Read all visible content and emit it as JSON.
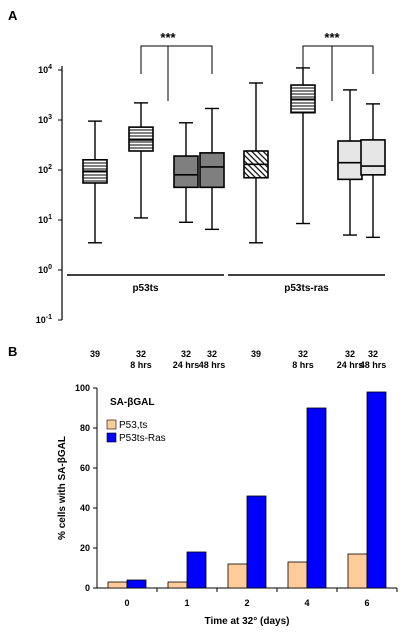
{
  "chart_data": [
    {
      "panel": "A",
      "type": "box",
      "scale": "log",
      "ylim_exp": [
        -1,
        4
      ],
      "y_ticks": [
        {
          "base": "10",
          "exp": "4",
          "value_exp": 4
        },
        {
          "base": "10",
          "exp": "3",
          "value_exp": 3
        },
        {
          "base": "10",
          "exp": "2",
          "value_exp": 2
        },
        {
          "base": "10",
          "exp": "1",
          "value_exp": 1
        },
        {
          "base": "10",
          "exp": "0",
          "value_exp": 0
        },
        {
          "base": "10",
          "exp": "-1",
          "value_exp": -1
        }
      ],
      "boxes": [
        {
          "cat1": "39",
          "cat2": "",
          "min": 3.5,
          "q1": 55,
          "median": 95,
          "q3": 160,
          "max": 950,
          "fill": "hatch-h"
        },
        {
          "cat1": "32",
          "cat2": "8 hrs",
          "min": 11,
          "q1": 240,
          "median": 400,
          "q3": 720,
          "max": 2200,
          "fill": "hatch-h"
        },
        {
          "cat1": "32",
          "cat2": "24 hrs",
          "min": 9,
          "q1": 45,
          "median": 80,
          "q3": 190,
          "max": 880,
          "fill": "#7f7f7f"
        },
        {
          "cat1": "32",
          "cat2": "48 hrs",
          "min": 6.5,
          "q1": 45,
          "median": 115,
          "q3": 220,
          "max": 1700,
          "fill": "#7f7f7f"
        },
        {
          "cat1": "39",
          "cat2": "",
          "min": 3.5,
          "q1": 70,
          "median": 130,
          "q3": 240,
          "max": 5500,
          "fill": "hatch-d"
        },
        {
          "cat1": "32",
          "cat2": "8 hrs",
          "min": 8.5,
          "q1": 1400,
          "median": 2600,
          "q3": 5000,
          "max": 11000,
          "fill": "hatch-h"
        },
        {
          "cat1": "32",
          "cat2": "24 hrs",
          "min": 5,
          "q1": 65,
          "median": 140,
          "q3": 380,
          "max": 4000,
          "fill": "#e6e6e6"
        },
        {
          "cat1": "32",
          "cat2": "48 hrs",
          "min": 4.5,
          "q1": 80,
          "median": 120,
          "q3": 400,
          "max": 2100,
          "fill": "#e6e6e6"
        }
      ],
      "groups": [
        {
          "label": "p53ts",
          "from": 0,
          "to": 3
        },
        {
          "label": "p53ts-ras",
          "from": 4,
          "to": 7
        }
      ],
      "significance": [
        {
          "label": "***",
          "from": 1,
          "to": 3,
          "level": 0
        },
        {
          "label": "***",
          "from": 5,
          "to": 7,
          "level": 0
        }
      ]
    },
    {
      "panel": "B",
      "type": "bar",
      "inset_title": "SA-βGAL",
      "categories": [
        "0",
        "1",
        "2",
        "4",
        "6"
      ],
      "series": [
        {
          "name": "P53,ts",
          "color": "#ffcc99",
          "values": [
            3,
            3,
            12,
            13,
            17
          ]
        },
        {
          "name": "P53ts-Ras",
          "color": "#0000ff",
          "values": [
            4,
            18,
            46,
            90,
            98
          ]
        }
      ],
      "xlabel": "Time at 32° (days)",
      "ylabel": "% cells with SA-βGAL",
      "ylim": [
        0,
        100
      ],
      "yticks": [
        0,
        20,
        40,
        60,
        80,
        100
      ],
      "grid": false,
      "legend": "top-left"
    }
  ],
  "labels": {
    "panel_a": "A",
    "panel_b": "B"
  }
}
